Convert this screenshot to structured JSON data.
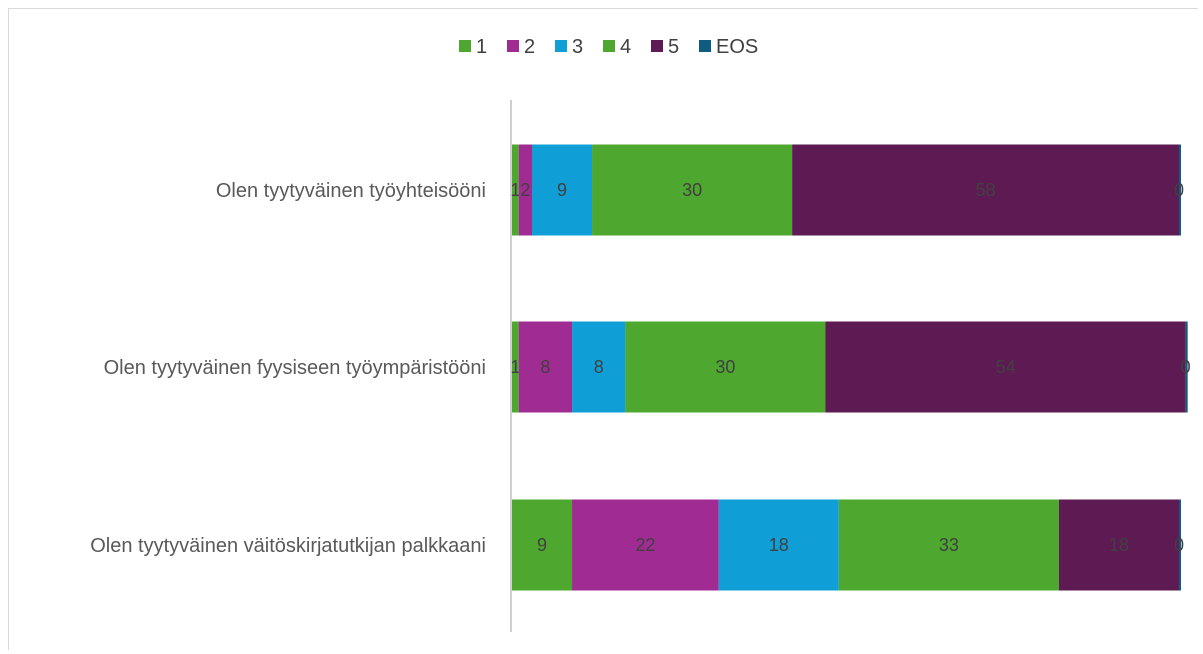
{
  "chart_data": {
    "type": "bar",
    "orientation": "horizontal",
    "stacked": true,
    "categories": [
      "Olen tyytyväinen työyhteisööni",
      "Olen tyytyväinen fyysiseen työympäristööni",
      "Olen tyytyväinen väitöskirjatutkijan palkkaani"
    ],
    "series": [
      {
        "name": "1",
        "color": "#4ea72e",
        "values": [
          1,
          1,
          9
        ]
      },
      {
        "name": "2",
        "color": "#a02b93",
        "values": [
          2,
          8,
          22
        ]
      },
      {
        "name": "3",
        "color": "#0f9ed5",
        "values": [
          9,
          8,
          18
        ]
      },
      {
        "name": "4",
        "color": "#4ea72e",
        "values": [
          30,
          30,
          33
        ]
      },
      {
        "name": "5",
        "color": "#5e1a53",
        "values": [
          58,
          54,
          18
        ]
      },
      {
        "name": "EOS",
        "color": "#0e5c7f",
        "values": [
          0,
          0,
          0
        ]
      }
    ],
    "legend_position": "top",
    "grid": false,
    "data_labels": true
  }
}
